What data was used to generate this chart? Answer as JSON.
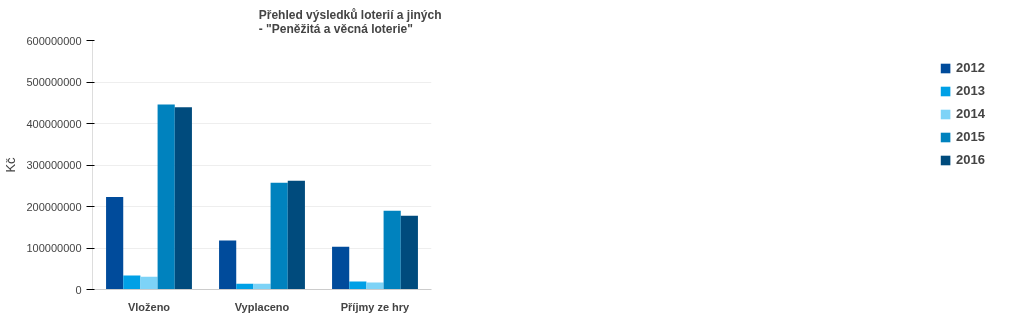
{
  "chart_data": {
    "type": "bar",
    "title": "Přehled výsledků loterií a jiných\n- \"Peněžitá a věcná loterie\"",
    "ylabel": "Kč",
    "categories": [
      "Vloženo",
      "Vyplaceno",
      "Příjmy ze hry"
    ],
    "series": [
      {
        "name": "2012",
        "color": "#004b9b",
        "values": [
          223000000,
          118000000,
          103000000
        ]
      },
      {
        "name": "2013",
        "color": "#00a0e6",
        "values": [
          34000000,
          14000000,
          19000000
        ]
      },
      {
        "name": "2014",
        "color": "#7dd3f7",
        "values": [
          31000000,
          14000000,
          17000000
        ]
      },
      {
        "name": "2015",
        "color": "#0082be",
        "values": [
          446000000,
          257000000,
          190000000
        ]
      },
      {
        "name": "2016",
        "color": "#004b7d",
        "values": [
          439000000,
          262000000,
          178000000
        ]
      }
    ],
    "ylim": [
      0,
      600000000
    ],
    "yticks": [
      0,
      100000000,
      200000000,
      300000000,
      400000000,
      500000000,
      600000000
    ],
    "grid": "y",
    "legend": "right"
  }
}
